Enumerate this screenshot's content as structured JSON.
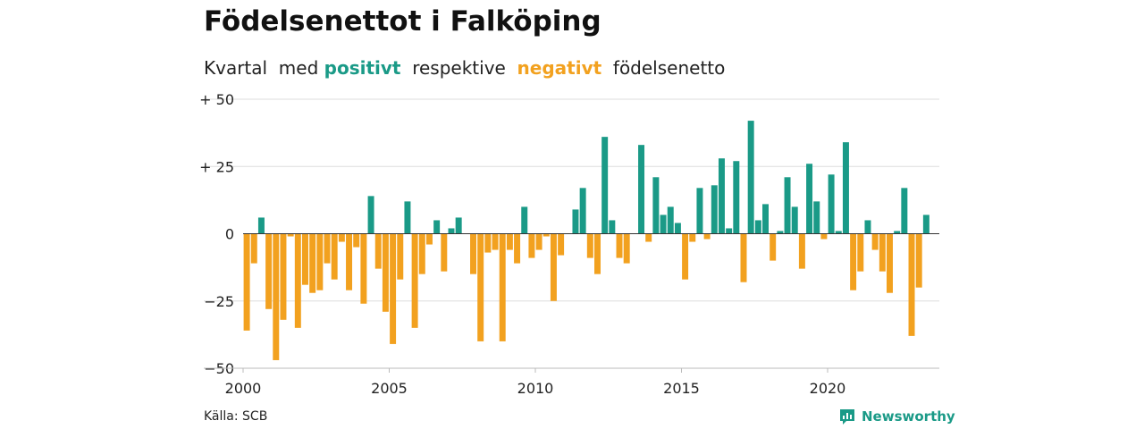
{
  "header": {
    "title": "Födelsenettot i Falköping",
    "subtitle_pre": "Kvartal  med ",
    "subtitle_positive": "positivt",
    "subtitle_mid": "  respektive  ",
    "subtitle_negative": "negativt",
    "subtitle_post": "  födelsenetto"
  },
  "footer": {
    "source": "Källa: SCB",
    "logo_text": "Newsworthy",
    "logo_icon": "newsworthy-logo-icon"
  },
  "colors": {
    "positive": "#1a9a87",
    "negative": "#f2a11f",
    "grid": "#dddddd",
    "axis": "#333333"
  },
  "chart_data": {
    "type": "bar",
    "title": "Födelsenettot i Falköping",
    "xlabel": "",
    "ylabel": "",
    "ylim": [
      -50,
      50
    ],
    "grid": true,
    "y_ticks": [
      {
        "value": 50,
        "label": "+ 50"
      },
      {
        "value": 25,
        "label": "+ 25"
      },
      {
        "value": 0,
        "label": "0"
      },
      {
        "value": -25,
        "label": "−25"
      },
      {
        "value": -50,
        "label": "−50"
      }
    ],
    "x_ticks": [
      {
        "value": 2000,
        "label": "2000"
      },
      {
        "value": 2005,
        "label": "2005"
      },
      {
        "value": 2010,
        "label": "2010"
      },
      {
        "value": 2015,
        "label": "2015"
      },
      {
        "value": 2020,
        "label": "2020"
      }
    ],
    "start_year": 2000,
    "start_quarter": 1,
    "values": [
      -36,
      -11,
      6,
      -28,
      -47,
      -32,
      -1,
      -35,
      -19,
      -22,
      -21,
      -11,
      -17,
      -3,
      -21,
      -5,
      -26,
      14,
      -13,
      -29,
      -41,
      -17,
      12,
      -35,
      -15,
      -4,
      5,
      -14,
      2,
      6,
      0,
      -15,
      -40,
      -7,
      -6,
      -40,
      -6,
      -11,
      10,
      -9,
      -6,
      -1,
      -25,
      -8,
      0,
      9,
      17,
      -9,
      -15,
      36,
      5,
      -9,
      -11,
      0,
      33,
      -3,
      21,
      7,
      10,
      4,
      -17,
      -3,
      17,
      -2,
      18,
      28,
      2,
      27,
      -18,
      42,
      5,
      11,
      -10,
      1,
      21,
      10,
      -13,
      26,
      12,
      -2,
      22,
      1,
      34,
      -21,
      -14,
      5,
      -6,
      -14,
      -22,
      1,
      17,
      -38,
      -20,
      7
    ]
  }
}
